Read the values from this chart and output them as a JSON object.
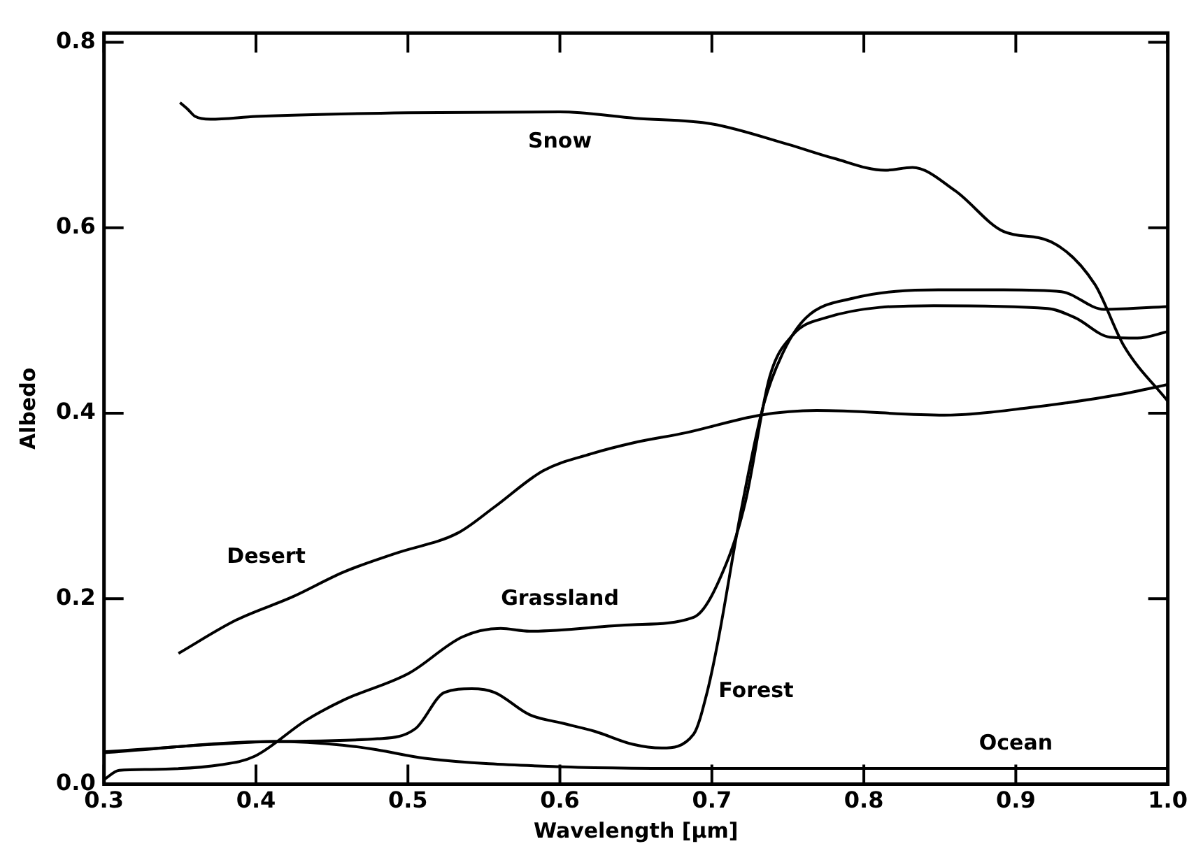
{
  "chart_data": {
    "type": "line",
    "xlabel": "Wavelength [μm]",
    "ylabel": "Albedo",
    "xlim": [
      0.3,
      1.0
    ],
    "ylim": [
      0,
      0.81
    ],
    "xticks": [
      {
        "value": 0.3,
        "label": "0.3"
      },
      {
        "value": 0.4,
        "label": "0.4"
      },
      {
        "value": 0.5,
        "label": "0.5"
      },
      {
        "value": 0.6,
        "label": "0.6"
      },
      {
        "value": 0.7,
        "label": "0.7"
      },
      {
        "value": 0.8,
        "label": "0.8"
      },
      {
        "value": 0.9,
        "label": "0.9"
      },
      {
        "value": 1.0,
        "label": "1.0"
      }
    ],
    "yticks": [
      {
        "value": 0,
        "label": "0.0"
      },
      {
        "value": 0.2,
        "label": "0.2"
      },
      {
        "value": 0.4,
        "label": "0.4"
      },
      {
        "value": 0.6,
        "label": "0.6"
      },
      {
        "value": 0.8,
        "label": "0.8"
      }
    ],
    "grid": false,
    "legend": false,
    "marker": "none",
    "line_style": "solid",
    "series": [
      {
        "color": "#000000",
        "x": [
          0.35,
          0.355,
          0.36,
          0.37,
          0.4,
          0.5,
          0.6,
          0.65,
          0.7,
          0.75,
          0.78,
          0.814,
          0.832,
          0.86,
          0.892,
          0.923,
          0.952,
          0.971,
          1.0
        ],
        "values": [
          0.735,
          0.728,
          0.72,
          0.717,
          0.72,
          0.724,
          0.725,
          0.718,
          0.712,
          0.69,
          0.675,
          0.662,
          0.665,
          0.64,
          0.596,
          0.585,
          0.539,
          0.473,
          0.413
        ]
      },
      {
        "color": "#000000",
        "x": [
          0.349,
          0.387,
          0.424,
          0.458,
          0.492,
          0.533,
          0.557,
          0.589,
          0.62,
          0.648,
          0.683,
          0.732,
          0.769,
          0.853,
          0.909,
          0.971,
          1.0
        ],
        "values": [
          0.141,
          0.177,
          0.202,
          0.229,
          0.249,
          0.271,
          0.299,
          0.338,
          0.356,
          0.368,
          0.379,
          0.398,
          0.403,
          0.398,
          0.406,
          0.421,
          0.431
        ]
      },
      {
        "color": "#000000",
        "x": [
          0.3,
          0.31,
          0.331,
          0.377,
          0.399,
          0.433,
          0.458,
          0.501,
          0.536,
          0.561,
          0.58,
          0.648,
          0.688,
          0.71,
          0.722,
          0.738,
          0.753,
          0.775,
          0.846,
          0.921,
          0.939,
          0.962,
          0.98,
          1.0
        ],
        "values": [
          0.005,
          0.015,
          0.016,
          0.021,
          0.03,
          0.069,
          0.091,
          0.12,
          0.159,
          0.168,
          0.165,
          0.172,
          0.18,
          0.24,
          0.304,
          0.439,
          0.484,
          0.503,
          0.516,
          0.513,
          0.503,
          0.482,
          0.481,
          0.488
        ]
      },
      {
        "color": "#000000",
        "x": [
          0.3,
          0.412,
          0.48,
          0.505,
          0.524,
          0.542,
          0.557,
          0.58,
          0.601,
          0.623,
          0.648,
          0.667,
          0.688,
          0.697,
          0.704,
          0.719,
          0.734,
          0.747,
          0.762,
          0.793,
          0.849,
          0.892,
          0.93,
          0.958,
          1.0
        ],
        "values": [
          0.035,
          0.046,
          0.049,
          0.06,
          0.099,
          0.103,
          0.099,
          0.075,
          0.066,
          0.057,
          0.043,
          0.039,
          0.054,
          0.1,
          0.154,
          0.293,
          0.409,
          0.466,
          0.503,
          0.524,
          0.533,
          0.533,
          0.531,
          0.512,
          0.515
        ]
      },
      {
        "color": "#000000",
        "x": [
          0.3,
          0.412,
          0.458,
          0.48,
          0.511,
          0.598,
          0.7,
          0.8,
          0.9,
          1.0
        ],
        "values": [
          0.034,
          0.046,
          0.042,
          0.037,
          0.028,
          0.019,
          0.017,
          0.017,
          0.017,
          0.017
        ]
      }
    ],
    "annotations": [
      {
        "text": "Snow",
        "x": 0.6,
        "y": 0.725
      },
      {
        "text": "Desert",
        "x": 0.44,
        "y": 0.215
      },
      {
        "text": "Grassland",
        "x": 0.6,
        "y": 0.17
      },
      {
        "text": "Forest",
        "x": 0.697,
        "y": 0.1
      },
      {
        "text": "Ocean",
        "x": 0.9,
        "y": 0.017
      }
    ]
  }
}
